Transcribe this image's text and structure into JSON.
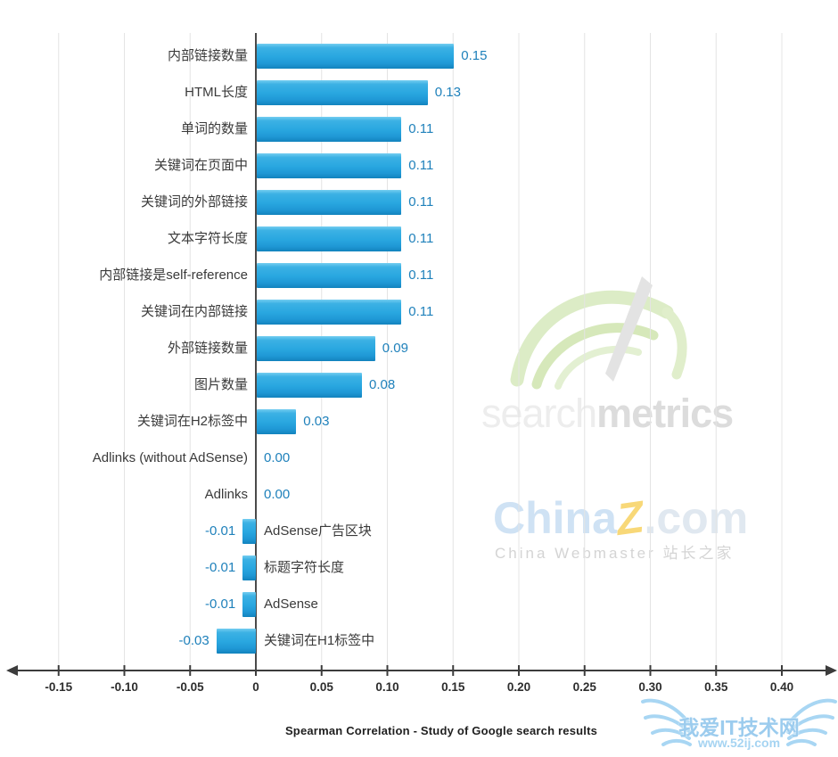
{
  "chart_data": {
    "type": "bar",
    "orientation": "horizontal",
    "title": "Spearman Correlation - Study of Google search results",
    "categories": [
      "内部链接数量",
      "HTML长度",
      "单词的数量",
      "关键词在页面中",
      "关键词的外部链接",
      "文本字符长度",
      "内部链接是self-reference",
      "关键词在内部链接",
      "外部链接数量",
      "图片数量",
      "关键词在H2标签中",
      "Adlinks (without AdSense)",
      "Adlinks",
      "AdSense广告区块",
      "标题字符长度",
      "AdSense",
      "关键词在H1标签中"
    ],
    "values": [
      0.15,
      0.13,
      0.11,
      0.11,
      0.11,
      0.11,
      0.11,
      0.11,
      0.09,
      0.08,
      0.03,
      0.0,
      0.0,
      -0.01,
      -0.01,
      -0.01,
      -0.03
    ],
    "xlim": [
      -0.186,
      0.437
    ],
    "grid": true,
    "x_ticks": [
      {
        "v": -0.15,
        "label": "-0.15"
      },
      {
        "v": -0.1,
        "label": "-0.10"
      },
      {
        "v": -0.05,
        "label": "-0.05"
      },
      {
        "v": 0,
        "label": "0"
      },
      {
        "v": 0.05,
        "label": "0.05"
      },
      {
        "v": 0.1,
        "label": "0.10"
      },
      {
        "v": 0.15,
        "label": "0.15"
      },
      {
        "v": 0.2,
        "label": "0.20"
      },
      {
        "v": 0.25,
        "label": "0.25"
      },
      {
        "v": 0.3,
        "label": "0.30"
      },
      {
        "v": 0.35,
        "label": "0.35"
      },
      {
        "v": 0.4,
        "label": "0.40"
      }
    ]
  },
  "colors": {
    "bar_main": "#29a7e0",
    "bar_highlight": "#74cdf0",
    "bar_shadow": "#1283bd",
    "value_text": "#1f81bb",
    "category_text": "#3a3a3a",
    "gridline": "#e4e4e4",
    "axis": "#3c3c3c",
    "zero_line": "#4a4a4a",
    "tick_text": "#2d2d2d"
  },
  "watermarks": {
    "searchmetrics": {
      "light": "search",
      "bold": "metrics"
    },
    "chinaz": {
      "p1": "China",
      "p2": "Z",
      "p3": ".com",
      "subtitle": "China Webmaster 站长之家"
    },
    "site": {
      "line1": "我爱IT技术网",
      "line2": "www.52ij.com"
    }
  }
}
